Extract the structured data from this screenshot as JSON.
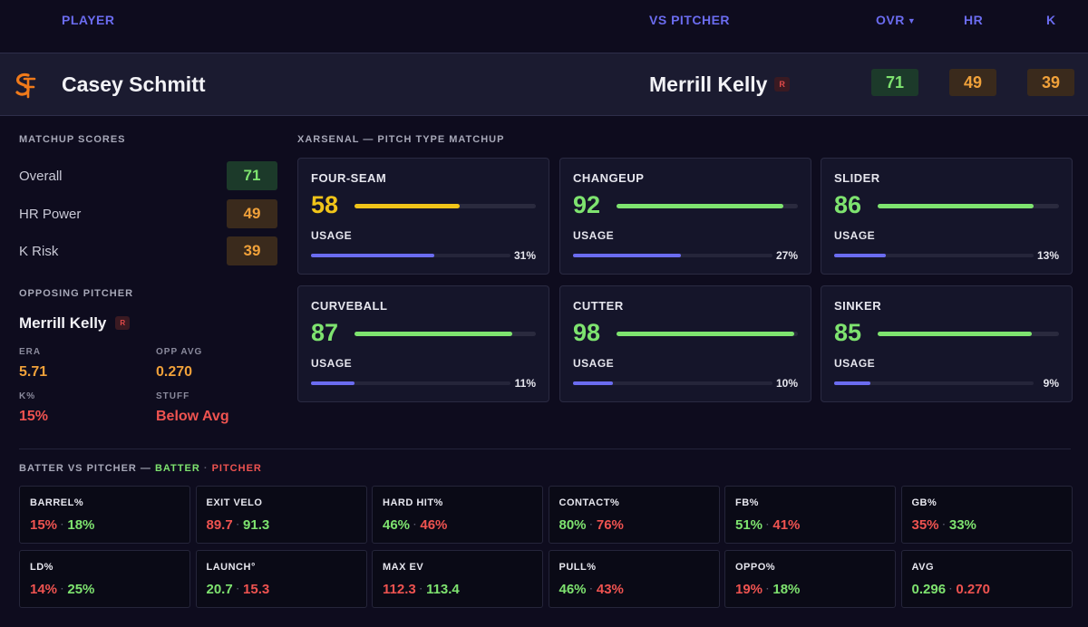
{
  "header": {
    "player": "PLAYER",
    "vs_pitcher": "VS PITCHER",
    "ovr": "OVR",
    "sort_icon": "caret-down-icon",
    "hr": "HR",
    "k": "K"
  },
  "row": {
    "team_logo": "sf-giants-logo",
    "player_name": "Casey Schmitt",
    "pitcher_name": "Merrill Kelly",
    "pitcher_hand": "R",
    "ovr": "71",
    "hr": "49",
    "k": "39"
  },
  "matchup_scores": {
    "title": "MATCHUP SCORES",
    "items": [
      {
        "label": "Overall",
        "value": "71"
      },
      {
        "label": "HR Power",
        "value": "49"
      },
      {
        "label": "K Risk",
        "value": "39"
      }
    ]
  },
  "opposing_pitcher": {
    "title": "OPPOSING PITCHER",
    "name": "Merrill Kelly",
    "hand": "R",
    "era_label": "ERA",
    "era": "5.71",
    "opp_avg_label": "OPP AVG",
    "opp_avg": "0.270",
    "k_label": "K%",
    "k": "15%",
    "stuff_label": "STUFF",
    "stuff": "Below Avg"
  },
  "xarsenal": {
    "title": "XARSENAL — PITCH TYPE MATCHUP",
    "usage_label": "USAGE",
    "pitches": [
      {
        "name": "FOUR-SEAM",
        "score": "58",
        "score_value": 58,
        "usage": "31%",
        "usage_value": 31,
        "color": "#f0c419"
      },
      {
        "name": "CHANGEUP",
        "score": "92",
        "score_value": 92,
        "usage": "27%",
        "usage_value": 27,
        "color": "#7ee36f"
      },
      {
        "name": "SLIDER",
        "score": "86",
        "score_value": 86,
        "usage": "13%",
        "usage_value": 13,
        "color": "#7ee36f"
      },
      {
        "name": "CURVEBALL",
        "score": "87",
        "score_value": 87,
        "usage": "11%",
        "usage_value": 11,
        "color": "#7ee36f"
      },
      {
        "name": "CUTTER",
        "score": "98",
        "score_value": 98,
        "usage": "10%",
        "usage_value": 10,
        "color": "#7ee36f"
      },
      {
        "name": "SINKER",
        "score": "85",
        "score_value": 85,
        "usage": "9%",
        "usage_value": 9,
        "color": "#7ee36f"
      }
    ]
  },
  "batter_vs_pitcher": {
    "title_prefix": "BATTER VS PITCHER — ",
    "batter_word": "BATTER",
    "separator": " · ",
    "pitcher_word": "PITCHER",
    "stats": [
      {
        "name": "BARREL%",
        "batter": "15%",
        "pitcher": "18%",
        "batter_color": "#ef5350",
        "pitcher_color": "#7ee36f"
      },
      {
        "name": "EXIT VELO",
        "batter": "89.7",
        "pitcher": "91.3",
        "batter_color": "#ef5350",
        "pitcher_color": "#7ee36f"
      },
      {
        "name": "HARD HIT%",
        "batter": "46%",
        "pitcher": "46%",
        "batter_color": "#7ee36f",
        "pitcher_color": "#ef5350"
      },
      {
        "name": "CONTACT%",
        "batter": "80%",
        "pitcher": "76%",
        "batter_color": "#7ee36f",
        "pitcher_color": "#ef5350"
      },
      {
        "name": "FB%",
        "batter": "51%",
        "pitcher": "41%",
        "batter_color": "#7ee36f",
        "pitcher_color": "#ef5350"
      },
      {
        "name": "GB%",
        "batter": "35%",
        "pitcher": "33%",
        "batter_color": "#ef5350",
        "pitcher_color": "#7ee36f"
      },
      {
        "name": "LD%",
        "batter": "14%",
        "pitcher": "25%",
        "batter_color": "#ef5350",
        "pitcher_color": "#7ee36f"
      },
      {
        "name": "LAUNCH°",
        "batter": "20.7",
        "pitcher": "15.3",
        "batter_color": "#7ee36f",
        "pitcher_color": "#ef5350"
      },
      {
        "name": "MAX EV",
        "batter": "112.3",
        "pitcher": "113.4",
        "batter_color": "#ef5350",
        "pitcher_color": "#7ee36f"
      },
      {
        "name": "PULL%",
        "batter": "46%",
        "pitcher": "43%",
        "batter_color": "#7ee36f",
        "pitcher_color": "#ef5350"
      },
      {
        "name": "OPPO%",
        "batter": "19%",
        "pitcher": "18%",
        "batter_color": "#ef5350",
        "pitcher_color": "#7ee36f"
      },
      {
        "name": "AVG",
        "batter": "0.296",
        "pitcher": "0.270",
        "batter_color": "#7ee36f",
        "pitcher_color": "#ef5350"
      }
    ]
  }
}
